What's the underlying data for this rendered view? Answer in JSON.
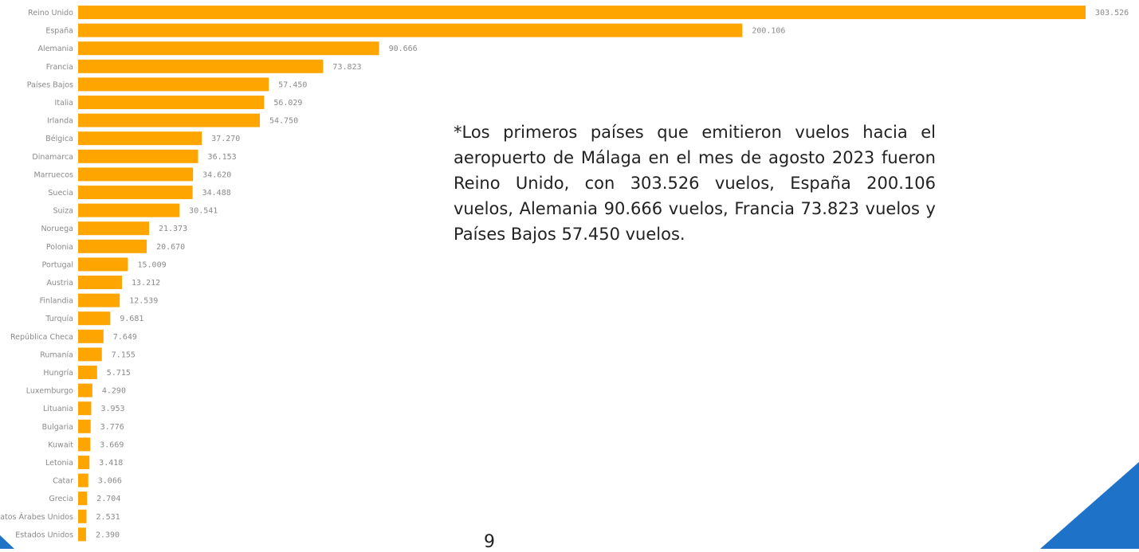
{
  "chart_data": {
    "type": "bar",
    "orientation": "horizontal",
    "categories": [
      "Reino Unido",
      "España",
      "Alemania",
      "Francia",
      "Países Bajos",
      "Italia",
      "Irlanda",
      "Bélgica",
      "Dinamarca",
      "Marruecos",
      "Suecia",
      "Suiza",
      "Noruega",
      "Polonia",
      "Portugal",
      "Austria",
      "Finlandia",
      "Turquía",
      "República Checa",
      "Rumanía",
      "Hungría",
      "Luxemburgo",
      "Lituania",
      "Bulgaria",
      "Kuwait",
      "Letonia",
      "Catar",
      "Grecia",
      "Emiratos Árabes Unidos",
      "Estados Unidos"
    ],
    "values": [
      303526,
      200106,
      90666,
      73823,
      57450,
      56029,
      54750,
      37270,
      36153,
      34620,
      34488,
      30541,
      21373,
      20670,
      15009,
      13212,
      12539,
      9681,
      7649,
      7155,
      5715,
      4290,
      3953,
      3776,
      3669,
      3418,
      3066,
      2704,
      2531,
      2390
    ],
    "value_labels": [
      "303.526",
      "200.106",
      "90.666",
      "73.823",
      "57.450",
      "56.029",
      "54.750",
      "37.270",
      "36.153",
      "34.620",
      "34.488",
      "30.541",
      "21.373",
      "20.670",
      "15.009",
      "13.212",
      "12.539",
      "9.681",
      "7.649",
      "7.155",
      "5.715",
      "4.290",
      "3.953",
      "3.776",
      "3.669",
      "3.418",
      "3.066",
      "2.704",
      "2.531",
      "2.390"
    ],
    "bar_color": "#FFA500",
    "grid": false
  },
  "note": "*Los primeros países que emitieron vuelos hacia el aeropuerto de Málaga en el mes de agosto 2023 fueron Reino Unido, con 303.526 vuelos, España 200.106 vuelos, Alemania 90.666 vuelos, Francia 73.823 vuelos y Países Bajos 57.450 vuelos.",
  "page_number": "9",
  "decoration": {
    "corner_color": "#1E73C8",
    "corner_color_light": "#3A8FE0"
  }
}
